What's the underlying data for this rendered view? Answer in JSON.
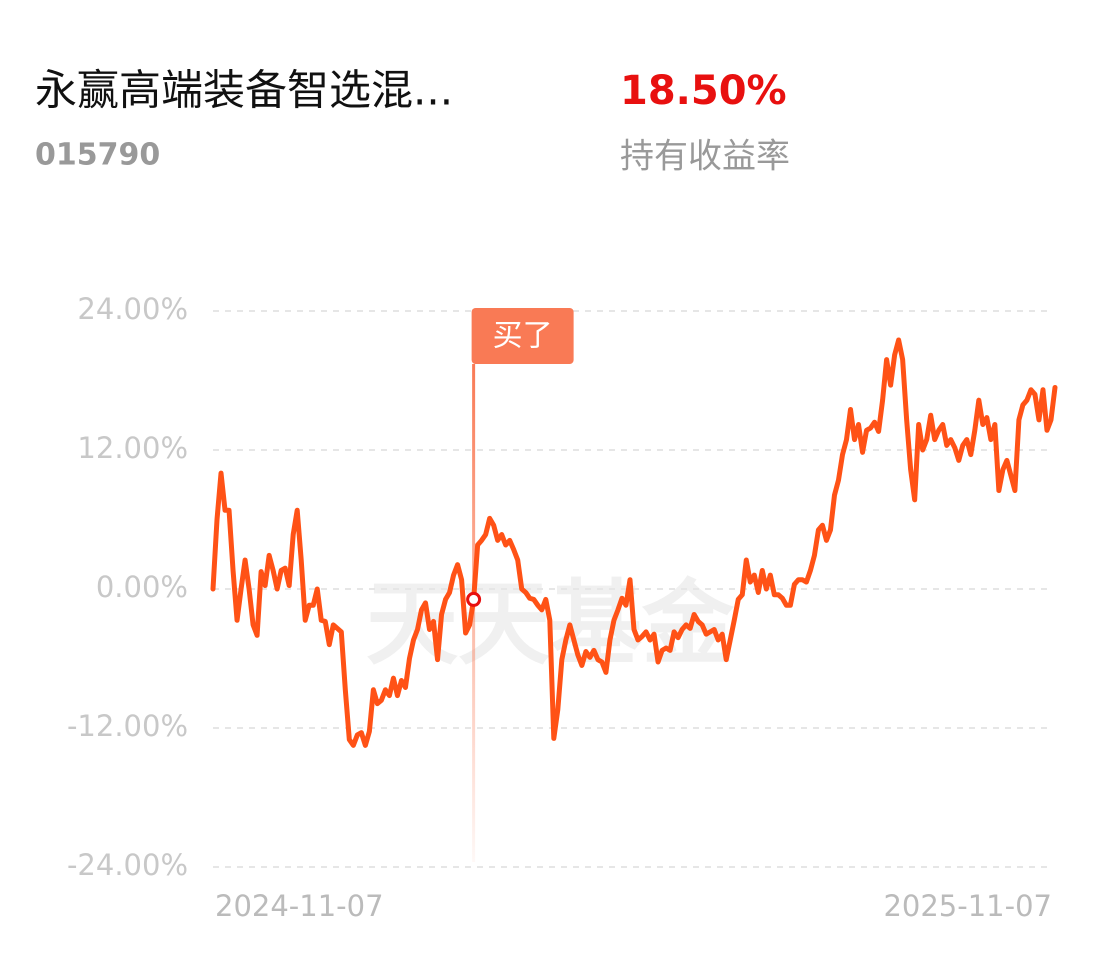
{
  "header": {
    "title": "永赢高端装备智选混...",
    "code": "015790",
    "return": "18.50%",
    "return_label": "持有收益率"
  },
  "chart_data": {
    "type": "line",
    "watermark": "天天基金",
    "categories": [
      "2024-11-07",
      null,
      null,
      null,
      null,
      null,
      null,
      null,
      null,
      null,
      null,
      null,
      null,
      null,
      null,
      null,
      null,
      null,
      null,
      null,
      null,
      null,
      null,
      null,
      null,
      null,
      null,
      null,
      null,
      null,
      null,
      null,
      null,
      null,
      null,
      null,
      null,
      null,
      null,
      null,
      null,
      null,
      null,
      null,
      null,
      null,
      null,
      null,
      null,
      null,
      null,
      null,
      null,
      null,
      null,
      null,
      null,
      null,
      null,
      null,
      null,
      null,
      null,
      null,
      null,
      null,
      null,
      null,
      null,
      null,
      null,
      null,
      null,
      null,
      null,
      null,
      null,
      null,
      null,
      null,
      null,
      null,
      null,
      null,
      null,
      null,
      null,
      null,
      null,
      null,
      null,
      null,
      null,
      null,
      null,
      null,
      null,
      null,
      null,
      null,
      null,
      null,
      null,
      null,
      null,
      null,
      null,
      null,
      null,
      null,
      null,
      null,
      null,
      null,
      null,
      null,
      null,
      null,
      null,
      null,
      null,
      null,
      null,
      null,
      null,
      null,
      null,
      null,
      null,
      null,
      null,
      null,
      null,
      null,
      null,
      null,
      null,
      null,
      null,
      null,
      null,
      null,
      null,
      null,
      null,
      null,
      null,
      null,
      null,
      null,
      null,
      null,
      null,
      null,
      null,
      null,
      null,
      null,
      null,
      null,
      null,
      null,
      null,
      null,
      null,
      null,
      null,
      null,
      null,
      null,
      null,
      null,
      null,
      null,
      null,
      null,
      null,
      null,
      null,
      null,
      null,
      null,
      null,
      null,
      null,
      null,
      null,
      null,
      null,
      null,
      null,
      null,
      null,
      null,
      null,
      null,
      null,
      null,
      null,
      null,
      null,
      null,
      null,
      null,
      null,
      null,
      null,
      null,
      null,
      null,
      "2025-11-07"
    ],
    "values": [
      0,
      6.0,
      10.0,
      6.8,
      6.8,
      1.6,
      -2.7,
      0,
      2.5,
      0,
      -3.1,
      -4.0,
      1.5,
      0.3,
      2.9,
      1.6,
      0,
      1.6,
      1.8,
      0.3,
      4.7,
      6.8,
      2.5,
      -2.7,
      -1.4,
      -1.4,
      0,
      -2.7,
      -2.8,
      -4.8,
      -3.1,
      -3.4,
      -3.7,
      -8.7,
      -13.0,
      -13.5,
      -12.6,
      -12.4,
      -13.5,
      -12.3,
      -8.7,
      -9.9,
      -9.6,
      -8.7,
      -9.2,
      -7.7,
      -9.2,
      -7.9,
      -8.5,
      -6.0,
      -4.4,
      -3.5,
      -1.8,
      -1.2,
      -3.5,
      -2.8,
      -6.1,
      -2.2,
      -0.9,
      -0.3,
      1.2,
      2.1,
      0.8,
      -3.8,
      -3.1,
      -0.9,
      3.8,
      4.2,
      4.7,
      6.1,
      5.5,
      4.2,
      4.7,
      3.8,
      4.2,
      3.4,
      2.5,
      0,
      -0.3,
      -0.8,
      -0.9,
      -1.4,
      -1.8,
      -0.9,
      -2.7,
      -12.9,
      -10.4,
      -6.1,
      -4.4,
      -3.1,
      -4.4,
      -5.7,
      -6.6,
      -5.4,
      -5.9,
      -5.3,
      -6.1,
      -6.3,
      -7.2,
      -4.4,
      -2.7,
      -1.8,
      -0.8,
      -1.4,
      0.8,
      -3.5,
      -4.4,
      -4.1,
      -3.7,
      -4.4,
      -3.9,
      -6.3,
      -5.3,
      -5.1,
      -5.3,
      -3.7,
      -4.2,
      -3.5,
      -3.1,
      -3.4,
      -2.2,
      -2.8,
      -3.1,
      -3.9,
      -3.7,
      -3.5,
      -4.4,
      -3.9,
      -6.1,
      -4.4,
      -2.7,
      -0.9,
      -0.5,
      2.5,
      0.6,
      1.2,
      -0.3,
      1.6,
      0,
      1.2,
      -0.5,
      -0.5,
      -0.8,
      -1.4,
      -1.4,
      0.4,
      0.8,
      0.8,
      0.6,
      1.6,
      2.9,
      5.1,
      5.5,
      4.2,
      5.1,
      8.1,
      9.4,
      11.6,
      12.9,
      15.5,
      12.9,
      14.2,
      11.8,
      13.7,
      13.9,
      14.4,
      13.6,
      16.3,
      19.8,
      17.6,
      20.2,
      21.5,
      19.8,
      14.6,
      10.3,
      7.7,
      14.2,
      12.0,
      12.9,
      15.0,
      12.9,
      13.7,
      14.2,
      12.4,
      12.9,
      12.2,
      11.1,
      12.4,
      12.9,
      11.6,
      13.7,
      16.3,
      14.2,
      14.8,
      12.9,
      14.2,
      8.5,
      10.3,
      11.1,
      9.8,
      8.5,
      14.6,
      15.9,
      16.3,
      17.2,
      16.8,
      14.6,
      17.2,
      13.7,
      14.6,
      17.4
    ],
    "color": "#ff5216",
    "ylim": [
      -24,
      24
    ],
    "yticks": [
      {
        "value": -24,
        "label": "-24.00%"
      },
      {
        "value": -12,
        "label": "-12.00%"
      },
      {
        "value": 0,
        "label": "0.00%"
      },
      {
        "value": 12,
        "label": "12.00%"
      },
      {
        "value": 24,
        "label": "24.00%"
      }
    ],
    "grid": true,
    "annotation": {
      "text": "买了",
      "index": 65
    }
  }
}
